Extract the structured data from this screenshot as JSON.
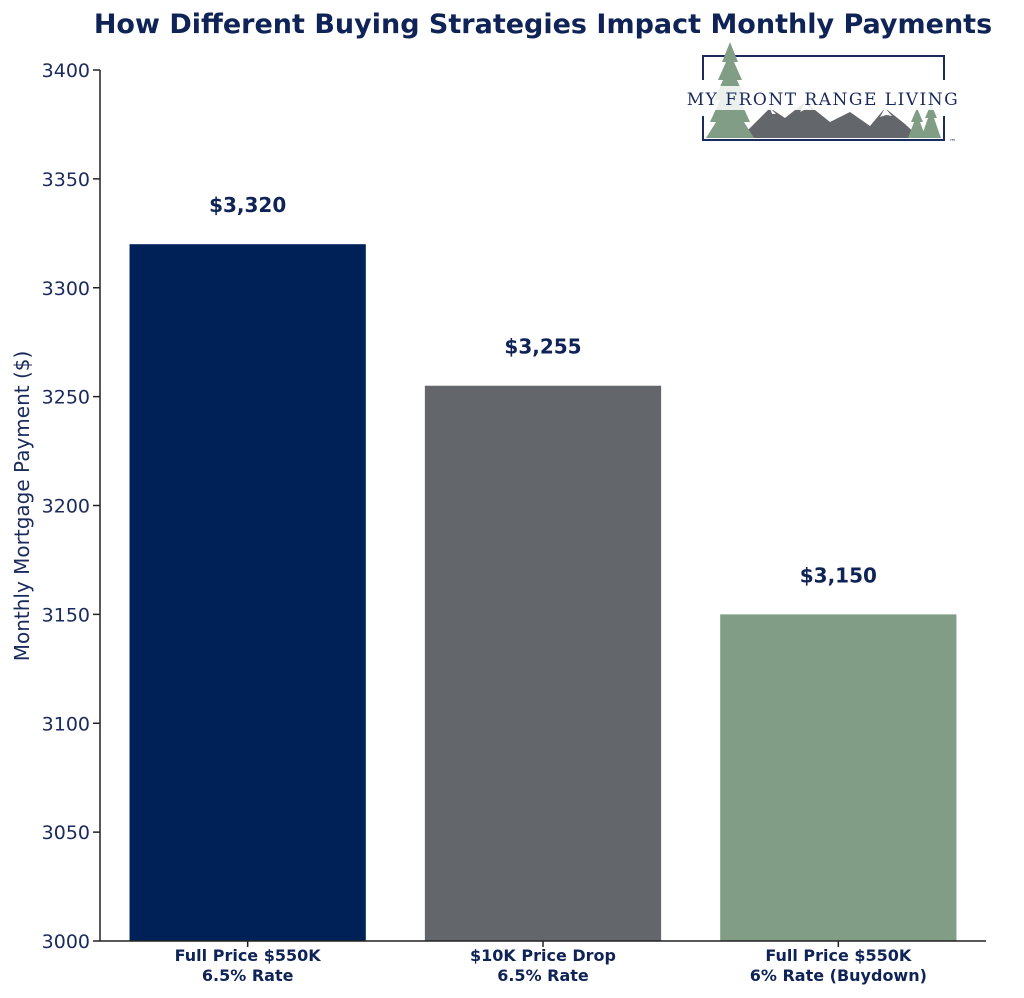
{
  "chart_data": {
    "type": "bar",
    "title": "How Different Buying Strategies Impact Monthly Payments",
    "xlabel": "",
    "ylabel": "Monthly Mortgage Payment ($)",
    "ylim": [
      3000,
      3400
    ],
    "yticks": [
      3000,
      3050,
      3100,
      3150,
      3200,
      3250,
      3300,
      3350,
      3400
    ],
    "categories": [
      [
        "Full Price $550K",
        "6.5% Rate"
      ],
      [
        "$10K Price Drop",
        "6.5% Rate"
      ],
      [
        "Full Price $550K",
        "6% Rate (Buydown)"
      ]
    ],
    "values": [
      3320,
      3255,
      3150
    ],
    "value_labels": [
      "$3,320",
      "$3,255",
      "$3,150"
    ],
    "colors": [
      "#002058",
      "#63666a",
      "#829d86"
    ],
    "grid": false,
    "legend": "none"
  },
  "logo": {
    "text": "MY FRONT RANGE LIVING",
    "trademark": "™"
  }
}
